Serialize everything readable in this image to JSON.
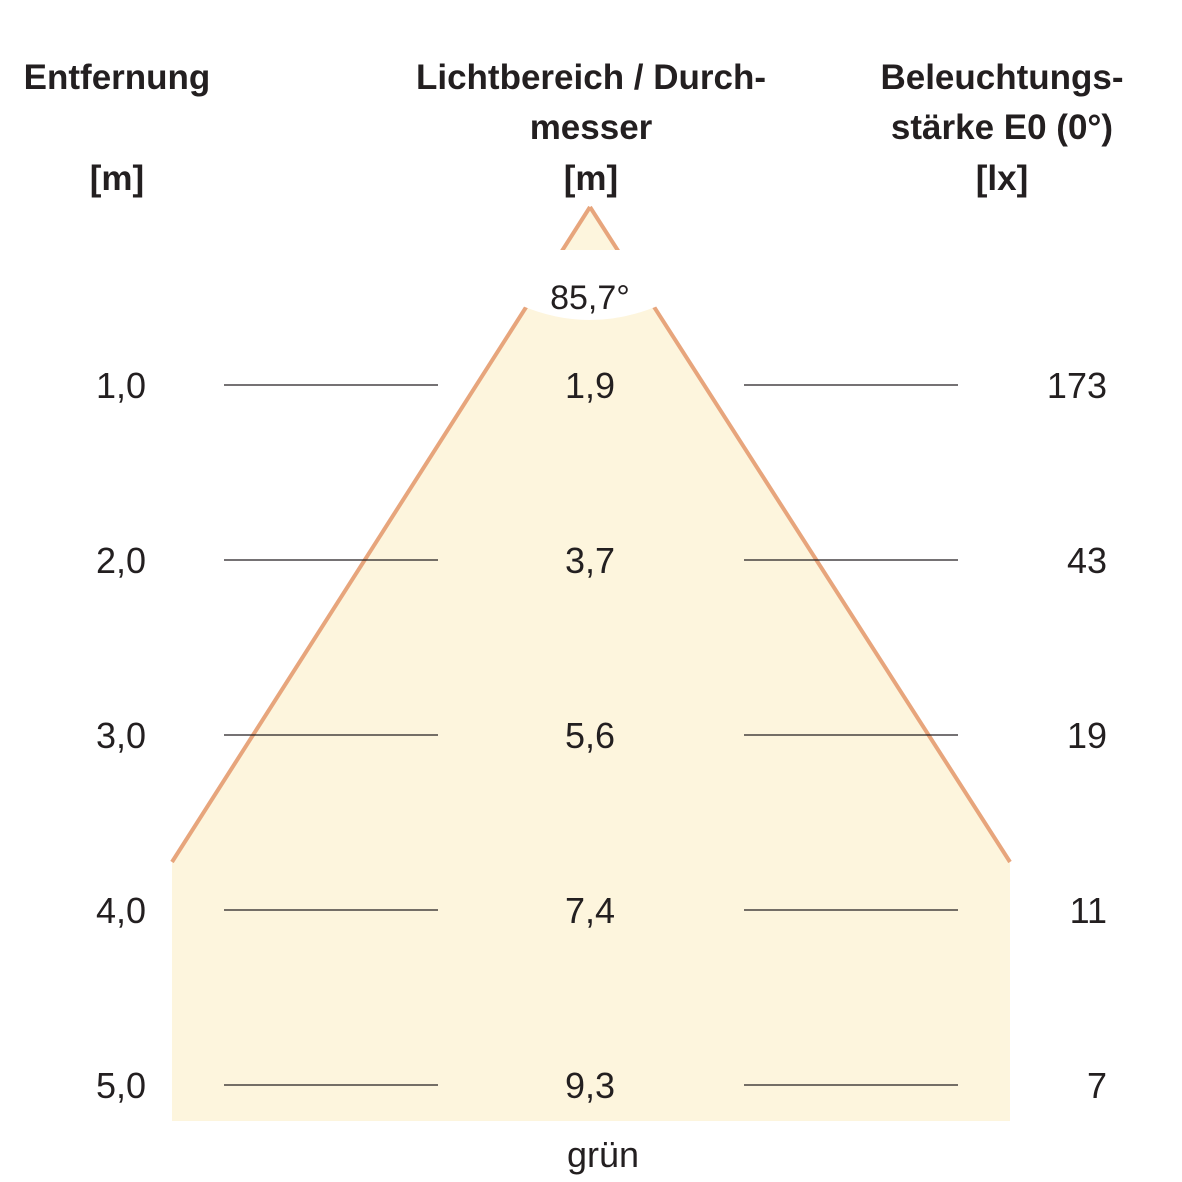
{
  "headers": {
    "distance": {
      "line1": "Entfernung",
      "unit": "[m]"
    },
    "diameter": {
      "line1": "Lichtbereich / Durch-",
      "line2": "messer",
      "unit": "[m]"
    },
    "illuminance": {
      "line1": "Beleuchtungs-",
      "line2": "stärke E0 (0°)",
      "unit": "[lx]"
    }
  },
  "beam_angle": "85,7°",
  "rows": [
    {
      "distance": "1,0",
      "diameter": "1,9",
      "lux": "173"
    },
    {
      "distance": "2,0",
      "diameter": "3,7",
      "lux": "43"
    },
    {
      "distance": "3,0",
      "diameter": "5,6",
      "lux": "19"
    },
    {
      "distance": "4,0",
      "diameter": "7,4",
      "lux": "11"
    },
    {
      "distance": "5,0",
      "diameter": "9,3",
      "lux": "7"
    }
  ],
  "color_label": "grün",
  "colors": {
    "cone_fill": "#fdf5dd",
    "cone_edge": "#e7a57c",
    "text": "#231f20",
    "lines": "#231f20"
  }
}
